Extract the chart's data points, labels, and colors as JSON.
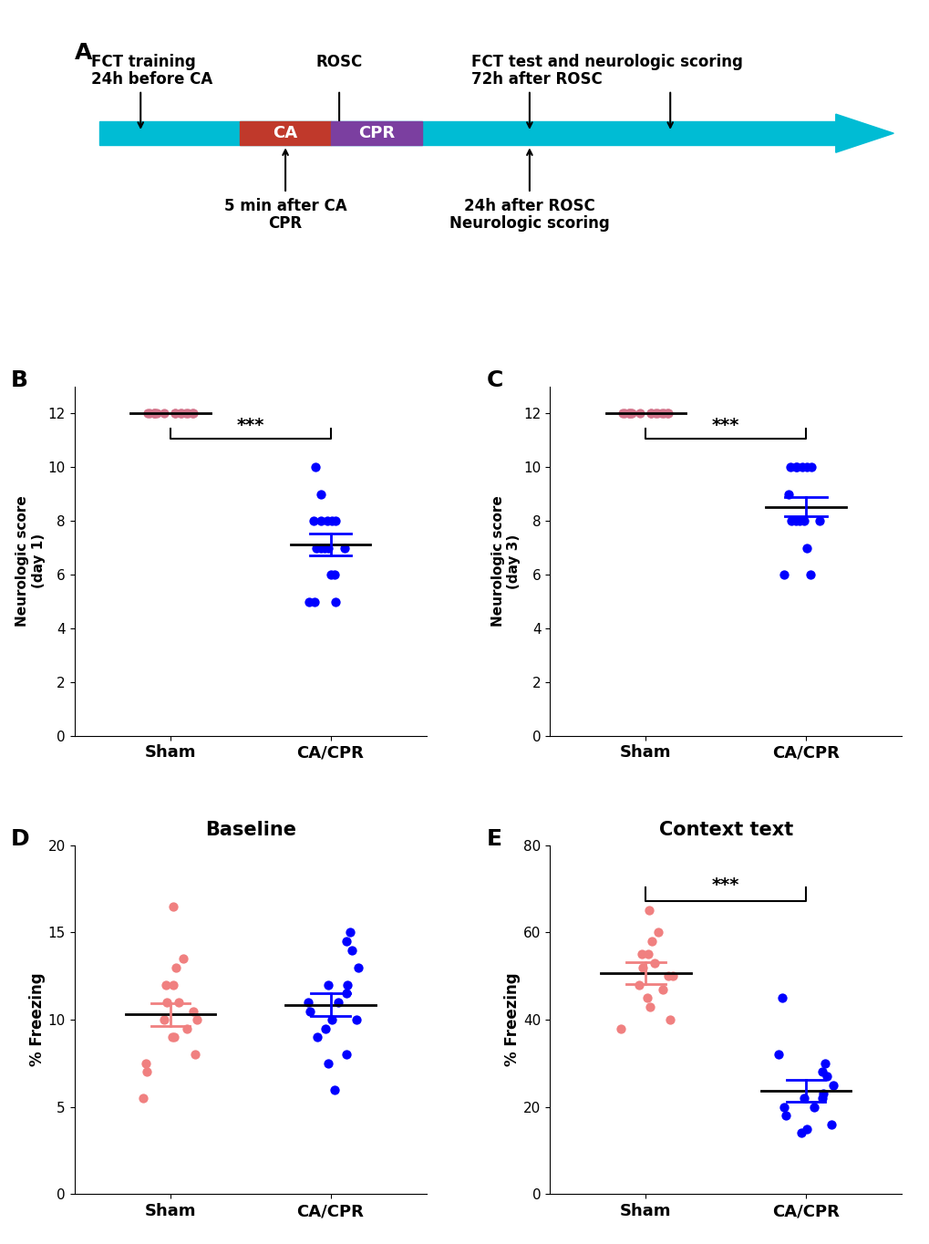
{
  "panel_A": {
    "arrow_color": "#00BCD4",
    "ca_color": "#C0392B",
    "cpr_color": "#7B3FA0",
    "label_fct_training": "FCT training",
    "label_24h_before": "24h before CA",
    "label_rosc": "ROSC",
    "label_fct_test": "FCT test and neurologic scoring",
    "label_72h": "72h after ROSC",
    "label_5min": "5 min after CA",
    "label_cpr": "CPR",
    "label_24h_rosc": "24h after ROSC",
    "label_neuro_scoring": "Neurologic scoring",
    "ca_text": "CA",
    "cpr_text": "CPR"
  },
  "panel_B": {
    "label": "B",
    "title": "",
    "ylabel": "Neurologic score\n(day 1)",
    "sham_data": [
      12,
      12,
      12,
      12,
      12,
      12,
      12,
      12,
      12,
      12,
      12,
      12,
      12,
      12,
      12
    ],
    "cacpr_data": [
      10,
      9,
      8,
      8,
      8,
      8,
      8,
      7,
      7,
      7,
      7,
      7,
      6,
      6,
      5,
      5,
      5
    ],
    "sham_color": "#D4758C",
    "cacpr_color": "#0000FF",
    "ylim": [
      0,
      13
    ],
    "yticks": [
      0,
      2,
      4,
      6,
      8,
      10,
      12
    ],
    "sham_mean": 12.0,
    "cacpr_mean": 7.3,
    "cacpr_sem": 0.4,
    "significance": "***"
  },
  "panel_C": {
    "label": "C",
    "title": "",
    "ylabel": "Neurologic score\n(day 3)",
    "sham_data": [
      12,
      12,
      12,
      12,
      12,
      12,
      12,
      12,
      12,
      12,
      12,
      12,
      12,
      12,
      12
    ],
    "cacpr_data": [
      10,
      10,
      10,
      10,
      10,
      10,
      9,
      8,
      8,
      8,
      8,
      8,
      7,
      6,
      6
    ],
    "sham_color": "#D4758C",
    "cacpr_color": "#0000FF",
    "ylim": [
      0,
      13
    ],
    "yticks": [
      0,
      2,
      4,
      6,
      8,
      10,
      12
    ],
    "sham_mean": 12.0,
    "cacpr_mean": 8.67,
    "cacpr_sem": 0.35,
    "significance": "***"
  },
  "panel_D": {
    "label": "D",
    "title": "Baseline",
    "ylabel": "% Freezing",
    "sham_data": [
      16.5,
      13.5,
      13,
      12,
      12,
      11,
      11,
      10.5,
      10,
      10,
      9.5,
      9,
      9,
      8,
      7.5,
      7,
      5.5
    ],
    "cacpr_data": [
      15,
      14.5,
      14,
      13,
      12,
      12,
      11.5,
      11,
      11,
      10.5,
      10,
      10,
      9.5,
      9,
      8,
      7.5,
      6
    ],
    "sham_color": "#F08080",
    "cacpr_color": "#0000FF",
    "ylim": [
      0,
      20
    ],
    "yticks": [
      0,
      5,
      10,
      15,
      20
    ],
    "sham_mean": 10.0,
    "cacpr_mean": 10.7,
    "sham_sem": 0.65,
    "cacpr_sem": 0.65,
    "significance": null
  },
  "panel_E": {
    "label": "E",
    "title": "Context text",
    "ylabel": "% Freezing",
    "sham_data": [
      65,
      60,
      58,
      55,
      55,
      53,
      52,
      50,
      50,
      48,
      47,
      45,
      43,
      40,
      38
    ],
    "cacpr_data": [
      45,
      32,
      30,
      28,
      27,
      25,
      23,
      22,
      22,
      20,
      20,
      18,
      16,
      15,
      14
    ],
    "sham_color": "#F08080",
    "cacpr_color": "#0000FF",
    "ylim": [
      0,
      80
    ],
    "yticks": [
      0,
      20,
      40,
      60,
      80
    ],
    "sham_mean": 50.0,
    "cacpr_mean": 21.0,
    "sham_sem": 2.5,
    "cacpr_sem": 2.5,
    "significance": "***"
  },
  "xticklabels": [
    "Sham",
    "CA/CPR"
  ],
  "background_color": "#FFFFFF"
}
